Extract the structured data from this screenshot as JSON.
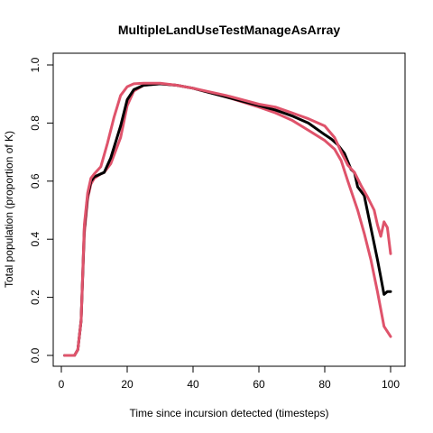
{
  "chart_data": {
    "type": "line",
    "title": "MultipleLandUseTestManageAsArray",
    "xlabel": "Time since incursion detected (timesteps)",
    "ylabel": "Total population (proportion of K)",
    "xlim": [
      0,
      100
    ],
    "ylim": [
      0,
      1
    ],
    "xticks": [
      0,
      20,
      40,
      60,
      80,
      100
    ],
    "yticks": [
      0.0,
      0.2,
      0.4,
      0.6,
      0.8,
      1.0
    ],
    "xtick_labels": [
      "0",
      "20",
      "40",
      "60",
      "80",
      "100"
    ],
    "ytick_labels": [
      "0.0",
      "0.2",
      "0.4",
      "0.6",
      "0.8",
      "1.0"
    ],
    "grid": false,
    "legend": "none",
    "series": [
      {
        "role": "lower",
        "color": "#DF536B",
        "x": [
          1,
          3,
          4,
          5,
          6,
          7,
          8,
          9,
          10,
          12,
          13,
          15,
          18,
          20,
          22,
          25,
          30,
          35,
          40,
          50,
          60,
          65,
          70,
          75,
          80,
          83,
          85,
          87,
          90,
          92,
          94,
          96,
          98,
          100
        ],
        "y": [
          0.0,
          0.0,
          0.0,
          0.02,
          0.12,
          0.42,
          0.54,
          0.59,
          0.61,
          0.625,
          0.63,
          0.66,
          0.75,
          0.86,
          0.91,
          0.93,
          0.935,
          0.93,
          0.92,
          0.89,
          0.855,
          0.835,
          0.81,
          0.775,
          0.74,
          0.71,
          0.67,
          0.6,
          0.5,
          0.42,
          0.33,
          0.22,
          0.1,
          0.065
        ]
      },
      {
        "role": "mean",
        "color": "#000000",
        "x": [
          1,
          3,
          4,
          5,
          6,
          7,
          8,
          9,
          10,
          12,
          13,
          15,
          18,
          20,
          22,
          25,
          30,
          35,
          40,
          50,
          60,
          65,
          70,
          75,
          80,
          82,
          84,
          86,
          88,
          89,
          90,
          92,
          94,
          96,
          97,
          98,
          99,
          100
        ],
        "y": [
          0.0,
          0.0,
          0.0,
          0.02,
          0.12,
          0.44,
          0.55,
          0.6,
          0.615,
          0.625,
          0.63,
          0.68,
          0.79,
          0.88,
          0.915,
          0.93,
          0.935,
          0.93,
          0.92,
          0.89,
          0.86,
          0.845,
          0.825,
          0.8,
          0.76,
          0.745,
          0.725,
          0.695,
          0.64,
          0.63,
          0.58,
          0.55,
          0.44,
          0.33,
          0.27,
          0.21,
          0.22,
          0.22
        ]
      },
      {
        "role": "upper",
        "color": "#DF536B",
        "x": [
          1,
          3,
          4,
          5,
          6,
          7,
          8,
          9,
          10,
          12,
          14,
          16,
          18,
          20,
          22,
          25,
          30,
          35,
          40,
          50,
          60,
          65,
          70,
          75,
          80,
          83,
          85,
          87,
          89,
          91,
          93,
          95,
          96,
          97,
          98,
          99,
          100
        ],
        "y": [
          0.0,
          0.0,
          0.0,
          0.02,
          0.12,
          0.45,
          0.56,
          0.61,
          0.625,
          0.65,
          0.73,
          0.82,
          0.895,
          0.925,
          0.935,
          0.937,
          0.937,
          0.93,
          0.92,
          0.895,
          0.865,
          0.855,
          0.835,
          0.815,
          0.79,
          0.75,
          0.7,
          0.655,
          0.63,
          0.585,
          0.545,
          0.5,
          0.45,
          0.41,
          0.46,
          0.44,
          0.35
        ]
      }
    ]
  }
}
